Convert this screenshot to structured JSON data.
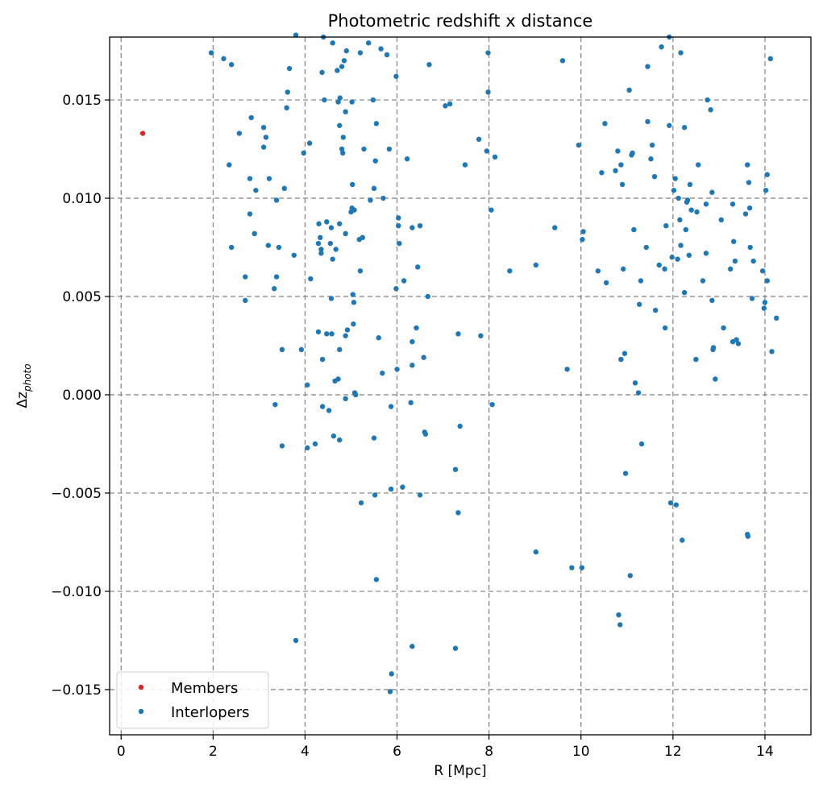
{
  "chart_data": {
    "type": "scatter",
    "title": "Photometric redshift x distance",
    "xlabel": "R [Mpc]",
    "ylabel": "Δz",
    "ylabel_sub": "photo",
    "xlim": [
      -0.25,
      15.0
    ],
    "ylim": [
      -0.0173,
      0.0182
    ],
    "xticks": [
      0,
      2,
      4,
      6,
      8,
      10,
      12,
      14
    ],
    "xtick_labels": [
      "0",
      "2",
      "4",
      "6",
      "8",
      "10",
      "12",
      "14"
    ],
    "yticks": [
      -0.015,
      -0.01,
      -0.005,
      0.0,
      0.005,
      0.01,
      0.015
    ],
    "ytick_labels": [
      "−0.015",
      "−0.010",
      "−0.005",
      "0.000",
      "0.005",
      "0.010",
      "0.015"
    ],
    "grid": true,
    "legend_position": "lower-left",
    "series": [
      {
        "name": "Members",
        "color": "#d62728",
        "points": [
          [
            0.47,
            0.0133
          ]
        ]
      },
      {
        "name": "Interlopers",
        "color": "#1f77b4",
        "points": [
          [
            1.96,
            0.0174
          ],
          [
            2.23,
            0.0171
          ],
          [
            2.4,
            0.0168
          ],
          [
            2.35,
            0.0117
          ],
          [
            2.4,
            0.0075
          ],
          [
            2.57,
            0.0133
          ],
          [
            2.7,
            0.006
          ],
          [
            2.7,
            0.0048
          ],
          [
            2.8,
            0.0092
          ],
          [
            2.83,
            0.0141
          ],
          [
            2.8,
            0.011
          ],
          [
            2.9,
            0.0082
          ],
          [
            2.93,
            0.0104
          ],
          [
            3.1,
            0.0136
          ],
          [
            3.1,
            0.0126
          ],
          [
            3.15,
            0.0131
          ],
          [
            3.2,
            0.0076
          ],
          [
            3.22,
            0.011
          ],
          [
            3.33,
            0.0054
          ],
          [
            3.38,
            0.006
          ],
          [
            3.38,
            0.0099
          ],
          [
            3.43,
            0.0075
          ],
          [
            3.35,
            -0.0005
          ],
          [
            3.5,
            0.0023
          ],
          [
            3.5,
            -0.0026
          ],
          [
            3.55,
            0.0105
          ],
          [
            3.6,
            0.0146
          ],
          [
            3.62,
            0.0154
          ],
          [
            3.66,
            0.0166
          ],
          [
            3.76,
            0.0071
          ],
          [
            3.8,
            0.0183
          ],
          [
            3.8,
            -0.0125
          ],
          [
            3.92,
            0.0023
          ],
          [
            3.97,
            0.0123
          ],
          [
            4.05,
            0.0005
          ],
          [
            4.05,
            -0.0027
          ],
          [
            4.1,
            0.0128
          ],
          [
            4.12,
            0.0059
          ],
          [
            4.22,
            -0.0025
          ],
          [
            4.29,
            0.0077
          ],
          [
            4.29,
            0.0032
          ],
          [
            4.3,
            0.0087
          ],
          [
            4.33,
            0.008
          ],
          [
            4.35,
            0.0074
          ],
          [
            4.35,
            0.0072
          ],
          [
            4.37,
            0.0164
          ],
          [
            4.38,
            -0.0006
          ],
          [
            4.38,
            0.0018
          ],
          [
            4.4,
            0.0182
          ],
          [
            4.42,
            0.015
          ],
          [
            4.47,
            0.0088
          ],
          [
            4.47,
            0.0031
          ],
          [
            4.52,
            -0.0008
          ],
          [
            4.55,
            0.0077
          ],
          [
            4.57,
            0.0085
          ],
          [
            4.57,
            0.0049
          ],
          [
            4.58,
            0.0031
          ],
          [
            4.6,
            0.0069
          ],
          [
            4.6,
            0.0179
          ],
          [
            4.62,
            -0.0021
          ],
          [
            4.65,
            0.0007
          ],
          [
            4.67,
            0.0074
          ],
          [
            4.7,
            0.0165
          ],
          [
            4.72,
            0.0149
          ],
          [
            4.72,
            0.0008
          ],
          [
            4.75,
            0.0023
          ],
          [
            4.75,
            -0.0023
          ],
          [
            4.75,
            0.0137
          ],
          [
            4.75,
            0.0087
          ],
          [
            4.76,
            0.0151
          ],
          [
            4.8,
            0.0125
          ],
          [
            4.8,
            0.0167
          ],
          [
            4.82,
            0.0123
          ],
          [
            4.83,
            0.0131
          ],
          [
            4.85,
            0.017
          ],
          [
            4.88,
            -0.0002
          ],
          [
            4.88,
            0.0144
          ],
          [
            4.88,
            0.0082
          ],
          [
            4.88,
            0.003
          ],
          [
            4.9,
            0.0175
          ],
          [
            4.92,
            0.0033
          ],
          [
            5.0,
            0.0093
          ],
          [
            5.02,
            0.0149
          ],
          [
            5.02,
            0.0095
          ],
          [
            5.03,
            0.0107
          ],
          [
            5.04,
            0.0051
          ],
          [
            5.05,
            0.0036
          ],
          [
            5.06,
            0.0047
          ],
          [
            5.07,
            0.0094
          ],
          [
            5.08,
            0.0001
          ],
          [
            5.1,
            0.0
          ],
          [
            5.18,
            0.0079
          ],
          [
            5.2,
            0.0174
          ],
          [
            5.2,
            0.0063
          ],
          [
            5.22,
            -0.0055
          ],
          [
            5.25,
            0.008
          ],
          [
            5.28,
            0.0125
          ],
          [
            5.38,
            0.0179
          ],
          [
            5.42,
            0.0099
          ],
          [
            5.48,
            0.015
          ],
          [
            5.5,
            0.0105
          ],
          [
            5.5,
            -0.0022
          ],
          [
            5.52,
            -0.0051
          ],
          [
            5.53,
            0.0119
          ],
          [
            5.55,
            0.0138
          ],
          [
            5.55,
            -0.0094
          ],
          [
            5.6,
            0.0029
          ],
          [
            5.65,
            0.0176
          ],
          [
            5.68,
            0.0011
          ],
          [
            5.7,
            0.01
          ],
          [
            5.78,
            0.0173
          ],
          [
            5.83,
            0.0125
          ],
          [
            5.87,
            -0.0048
          ],
          [
            5.87,
            -0.0006
          ],
          [
            5.88,
            -0.0142
          ],
          [
            5.85,
            -0.0151
          ],
          [
            5.98,
            0.0162
          ],
          [
            5.98,
            0.0054
          ],
          [
            6.0,
            0.0013
          ],
          [
            6.03,
            0.0086
          ],
          [
            6.03,
            0.009
          ],
          [
            6.05,
            0.0077
          ],
          [
            6.12,
            -0.0047
          ],
          [
            6.15,
            0.0058
          ],
          [
            6.22,
            0.012
          ],
          [
            6.3,
            -0.0004
          ],
          [
            6.33,
            0.0085
          ],
          [
            6.33,
            0.0027
          ],
          [
            6.33,
            0.0015
          ],
          [
            6.33,
            -0.0128
          ],
          [
            6.42,
            0.0034
          ],
          [
            6.45,
            0.0065
          ],
          [
            6.5,
            0.0086
          ],
          [
            6.5,
            -0.0051
          ],
          [
            6.58,
            0.0019
          ],
          [
            6.6,
            -0.0019
          ],
          [
            6.62,
            -0.002
          ],
          [
            6.67,
            0.005
          ],
          [
            6.7,
            0.0168
          ],
          [
            7.05,
            0.0147
          ],
          [
            7.15,
            0.0148
          ],
          [
            7.27,
            -0.0038
          ],
          [
            7.27,
            -0.0129
          ],
          [
            7.33,
            -0.006
          ],
          [
            7.33,
            0.0031
          ],
          [
            7.37,
            -0.0016
          ],
          [
            7.48,
            0.0117
          ],
          [
            7.78,
            0.013
          ],
          [
            7.82,
            0.003
          ],
          [
            7.95,
            0.0124
          ],
          [
            7.98,
            0.0174
          ],
          [
            7.98,
            0.0154
          ],
          [
            8.05,
            0.0094
          ],
          [
            8.07,
            -0.0005
          ],
          [
            8.13,
            0.0121
          ],
          [
            8.45,
            0.0063
          ],
          [
            9.02,
            0.0066
          ],
          [
            9.02,
            -0.008
          ],
          [
            9.43,
            0.0085
          ],
          [
            9.6,
            0.017
          ],
          [
            9.7,
            0.0013
          ],
          [
            9.8,
            -0.0088
          ],
          [
            9.95,
            0.0127
          ],
          [
            10.02,
            -0.0088
          ],
          [
            10.03,
            0.0079
          ],
          [
            10.05,
            0.0083
          ],
          [
            10.37,
            0.0063
          ],
          [
            10.45,
            0.0113
          ],
          [
            10.52,
            0.0138
          ],
          [
            10.55,
            0.0057
          ],
          [
            10.75,
            0.0114
          ],
          [
            10.8,
            0.0124
          ],
          [
            10.82,
            -0.0112
          ],
          [
            10.85,
            -0.0117
          ],
          [
            10.87,
            0.0018
          ],
          [
            10.87,
            0.0117
          ],
          [
            10.9,
            0.0107
          ],
          [
            10.92,
            0.0064
          ],
          [
            10.95,
            0.0021
          ],
          [
            10.97,
            -0.004
          ],
          [
            11.05,
            0.0155
          ],
          [
            11.07,
            -0.0092
          ],
          [
            11.1,
            0.0122
          ],
          [
            11.12,
            0.0123
          ],
          [
            11.15,
            0.0084
          ],
          [
            11.18,
            0.0006
          ],
          [
            11.25,
            0.0001
          ],
          [
            11.27,
            0.0046
          ],
          [
            11.3,
            0.0058
          ],
          [
            11.32,
            -0.0025
          ],
          [
            11.42,
            0.0075
          ],
          [
            11.45,
            0.0139
          ],
          [
            11.45,
            0.0167
          ],
          [
            11.52,
            0.012
          ],
          [
            11.55,
            0.0127
          ],
          [
            11.6,
            0.0111
          ],
          [
            11.62,
            0.0043
          ],
          [
            11.7,
            0.0066
          ],
          [
            11.75,
            0.0177
          ],
          [
            11.82,
            0.0064
          ],
          [
            11.83,
            0.0034
          ],
          [
            11.85,
            0.0086
          ],
          [
            11.92,
            0.0137
          ],
          [
            11.92,
            0.0182
          ],
          [
            11.95,
            -0.0055
          ],
          [
            11.98,
            0.007
          ],
          [
            12.02,
            0.0104
          ],
          [
            12.05,
            0.011
          ],
          [
            12.07,
            -0.0056
          ],
          [
            12.1,
            0.0069
          ],
          [
            12.12,
            0.01
          ],
          [
            12.15,
            0.0089
          ],
          [
            12.17,
            0.0174
          ],
          [
            12.17,
            0.0076
          ],
          [
            12.2,
            -0.0074
          ],
          [
            12.25,
            0.0052
          ],
          [
            12.25,
            0.0136
          ],
          [
            12.28,
            0.0084
          ],
          [
            12.3,
            0.0098
          ],
          [
            12.32,
            0.0099
          ],
          [
            12.35,
            0.0071
          ],
          [
            12.37,
            0.0107
          ],
          [
            12.4,
            0.0094
          ],
          [
            12.5,
            0.0018
          ],
          [
            12.52,
            0.0093
          ],
          [
            12.55,
            0.0117
          ],
          [
            12.65,
            0.0058
          ],
          [
            12.72,
            0.0097
          ],
          [
            12.72,
            0.0072
          ],
          [
            12.75,
            0.015
          ],
          [
            12.82,
            0.0145
          ],
          [
            12.85,
            0.0103
          ],
          [
            12.85,
            0.0048
          ],
          [
            12.87,
            0.0023
          ],
          [
            12.88,
            0.0024
          ],
          [
            12.92,
            0.0008
          ],
          [
            13.05,
            0.0089
          ],
          [
            13.1,
            0.0034
          ],
          [
            13.25,
            0.0064
          ],
          [
            13.3,
            0.0097
          ],
          [
            13.3,
            0.0027
          ],
          [
            13.32,
            0.0078
          ],
          [
            13.35,
            0.0068
          ],
          [
            13.38,
            0.0028
          ],
          [
            13.42,
            0.0026
          ],
          [
            13.58,
            0.0092
          ],
          [
            13.62,
            0.0117
          ],
          [
            13.62,
            -0.0071
          ],
          [
            13.63,
            -0.0072
          ],
          [
            13.65,
            0.0108
          ],
          [
            13.67,
            0.0095
          ],
          [
            13.68,
            0.0075
          ],
          [
            13.72,
            0.0049
          ],
          [
            13.75,
            0.0068
          ],
          [
            13.95,
            0.0063
          ],
          [
            13.98,
            0.0044
          ],
          [
            14.0,
            0.0047
          ],
          [
            14.02,
            0.0104
          ],
          [
            14.05,
            0.0112
          ],
          [
            14.05,
            0.0058
          ],
          [
            14.12,
            0.0171
          ],
          [
            14.15,
            0.0022
          ],
          [
            14.25,
            0.0039
          ]
        ]
      }
    ]
  }
}
